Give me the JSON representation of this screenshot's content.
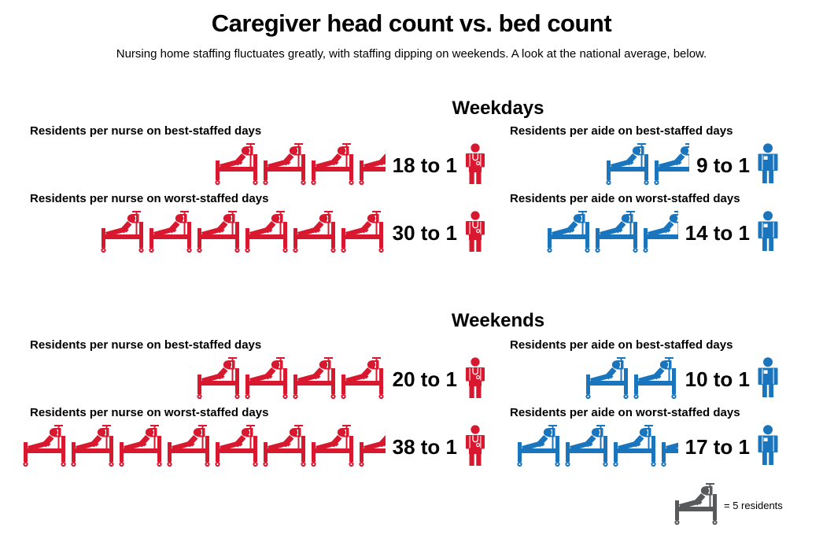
{
  "title": "Caregiver head count vs. bed count",
  "subtitle": "Nursing home staffing fluctuates greatly, with staffing dipping on weekends. A look at the national average, below.",
  "legend": {
    "label": "= 5 residents",
    "icon": "hospital-bed-icon",
    "color": "#58595b",
    "residents_per_icon": 5
  },
  "colors": {
    "nurse": "#d7182f",
    "aide": "#1b75bc",
    "legend_gray": "#58595b",
    "text": "#000000",
    "background": "#ffffff"
  },
  "chart_data": {
    "type": "pictogram",
    "icon": "hospital-bed",
    "unit_per_icon": 5,
    "unit_label": "residents",
    "sections": [
      {
        "heading": "Weekdays",
        "rows": [
          {
            "label": "Residents per nurse on best-staffed days",
            "group": "nurse",
            "value": 18,
            "ratio_label": "18 to 1",
            "icons": 3.6,
            "color": "#d7182f"
          },
          {
            "label": "Residents per nurse on worst-staffed days",
            "group": "nurse",
            "value": 30,
            "ratio_label": "30 to 1",
            "icons": 6,
            "color": "#d7182f"
          },
          {
            "label": "Residents per aide on best-staffed days",
            "group": "aide",
            "value": 9,
            "ratio_label": "9 to 1",
            "icons": 1.8,
            "color": "#1b75bc"
          },
          {
            "label": "Residents per aide on worst-staffed days",
            "group": "aide",
            "value": 14,
            "ratio_label": "14 to 1",
            "icons": 2.8,
            "color": "#1b75bc"
          }
        ]
      },
      {
        "heading": "Weekends",
        "rows": [
          {
            "label": "Residents per nurse on best-staffed days",
            "group": "nurse",
            "value": 20,
            "ratio_label": "20 to 1",
            "icons": 4,
            "color": "#d7182f"
          },
          {
            "label": "Residents per nurse on worst-staffed days",
            "group": "nurse",
            "value": 38,
            "ratio_label": "38 to 1",
            "icons": 7.6,
            "color": "#d7182f"
          },
          {
            "label": "Residents per aide on best-staffed days",
            "group": "aide",
            "value": 10,
            "ratio_label": "10 to 1",
            "icons": 2,
            "color": "#1b75bc"
          },
          {
            "label": "Residents per aide on worst-staffed days",
            "group": "aide",
            "value": 17,
            "ratio_label": "17 to 1",
            "icons": 3.4,
            "color": "#1b75bc"
          }
        ]
      }
    ]
  }
}
